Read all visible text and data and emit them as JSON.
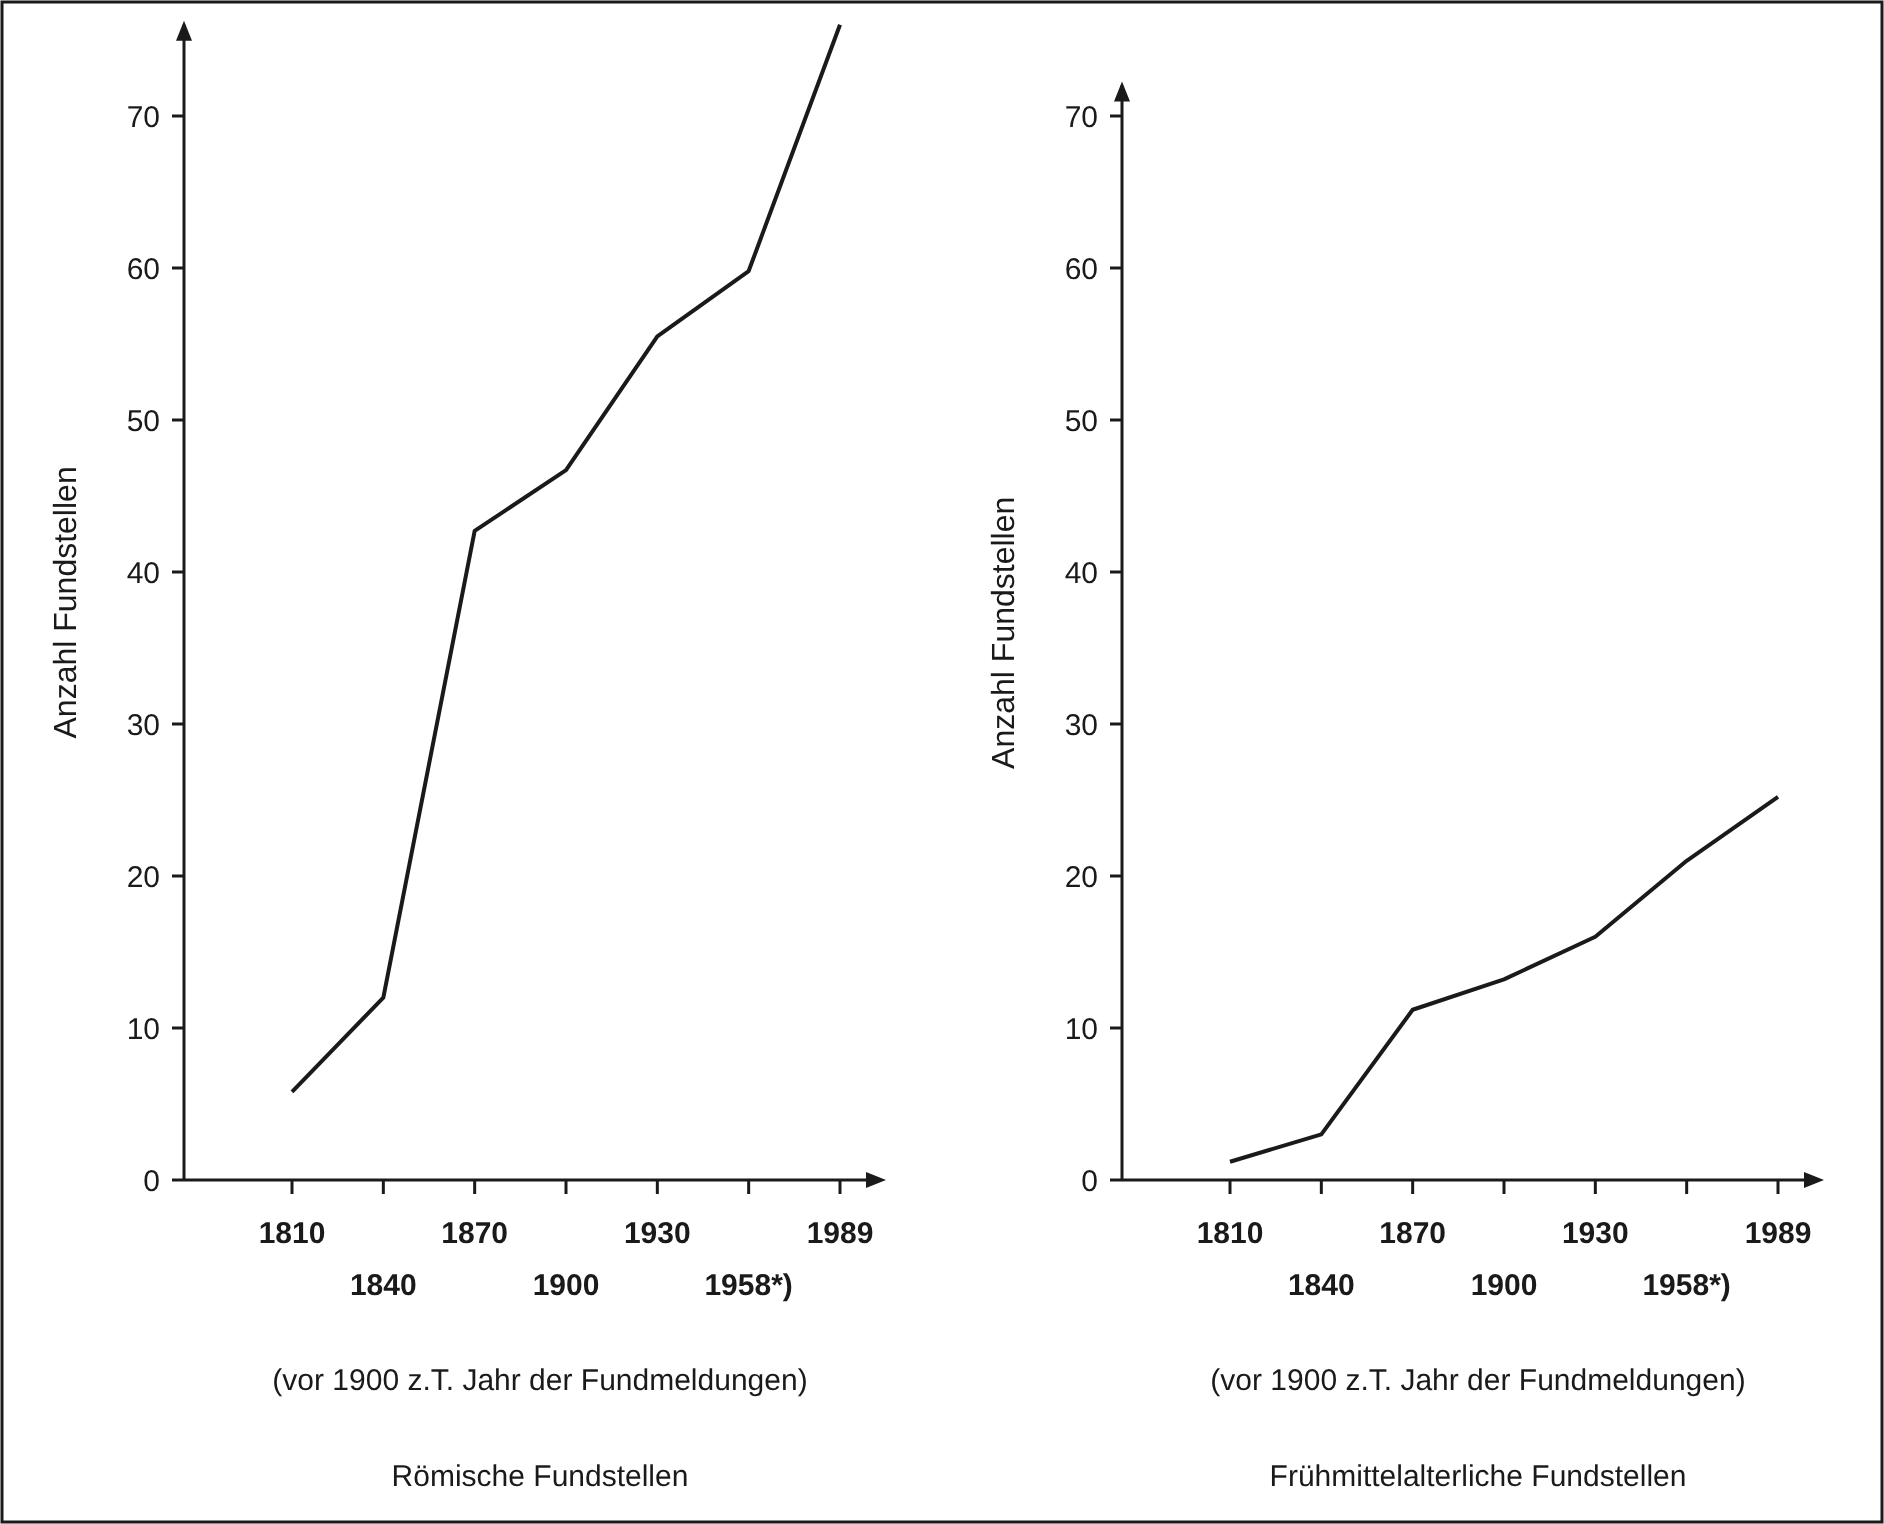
{
  "chart_data": [
    {
      "type": "line",
      "title": "Römische Fundstellen",
      "ylabel": "Anzahl Fundstellen",
      "categories": [
        "1810",
        "1840",
        "1870",
        "1900",
        "1930",
        "1958*)",
        "1989"
      ],
      "series": [
        {
          "color": "#1a1a1a",
          "values": [
            5.8,
            12,
            42.7,
            46.7,
            55.5,
            59.8,
            76
          ]
        }
      ],
      "ylim": [
        0,
        76
      ],
      "yticks": [
        0,
        10,
        20,
        30,
        40,
        50,
        60,
        70
      ],
      "annotations": [
        "(vor 1900 z.T. Jahr der Fundmeldungen)"
      ],
      "grid": false,
      "marker": "none",
      "line_style": "solid"
    },
    {
      "type": "line",
      "title": "Frühmittelalterliche Fundstellen",
      "ylabel": "Anzahl Fundstellen",
      "categories": [
        "1810",
        "1840",
        "1870",
        "1900",
        "1930",
        "1958*)",
        "1989"
      ],
      "series": [
        {
          "color": "#1a1a1a",
          "values": [
            1.2,
            3,
            11.2,
            13.2,
            16,
            21,
            25.2
          ]
        }
      ],
      "ylim": [
        0,
        72
      ],
      "yticks": [
        0,
        10,
        20,
        30,
        40,
        50,
        60,
        70
      ],
      "annotations": [
        "(vor 1900 z.T. Jahr der Fundmeldungen)"
      ],
      "grid": false,
      "marker": "none",
      "line_style": "solid"
    }
  ]
}
